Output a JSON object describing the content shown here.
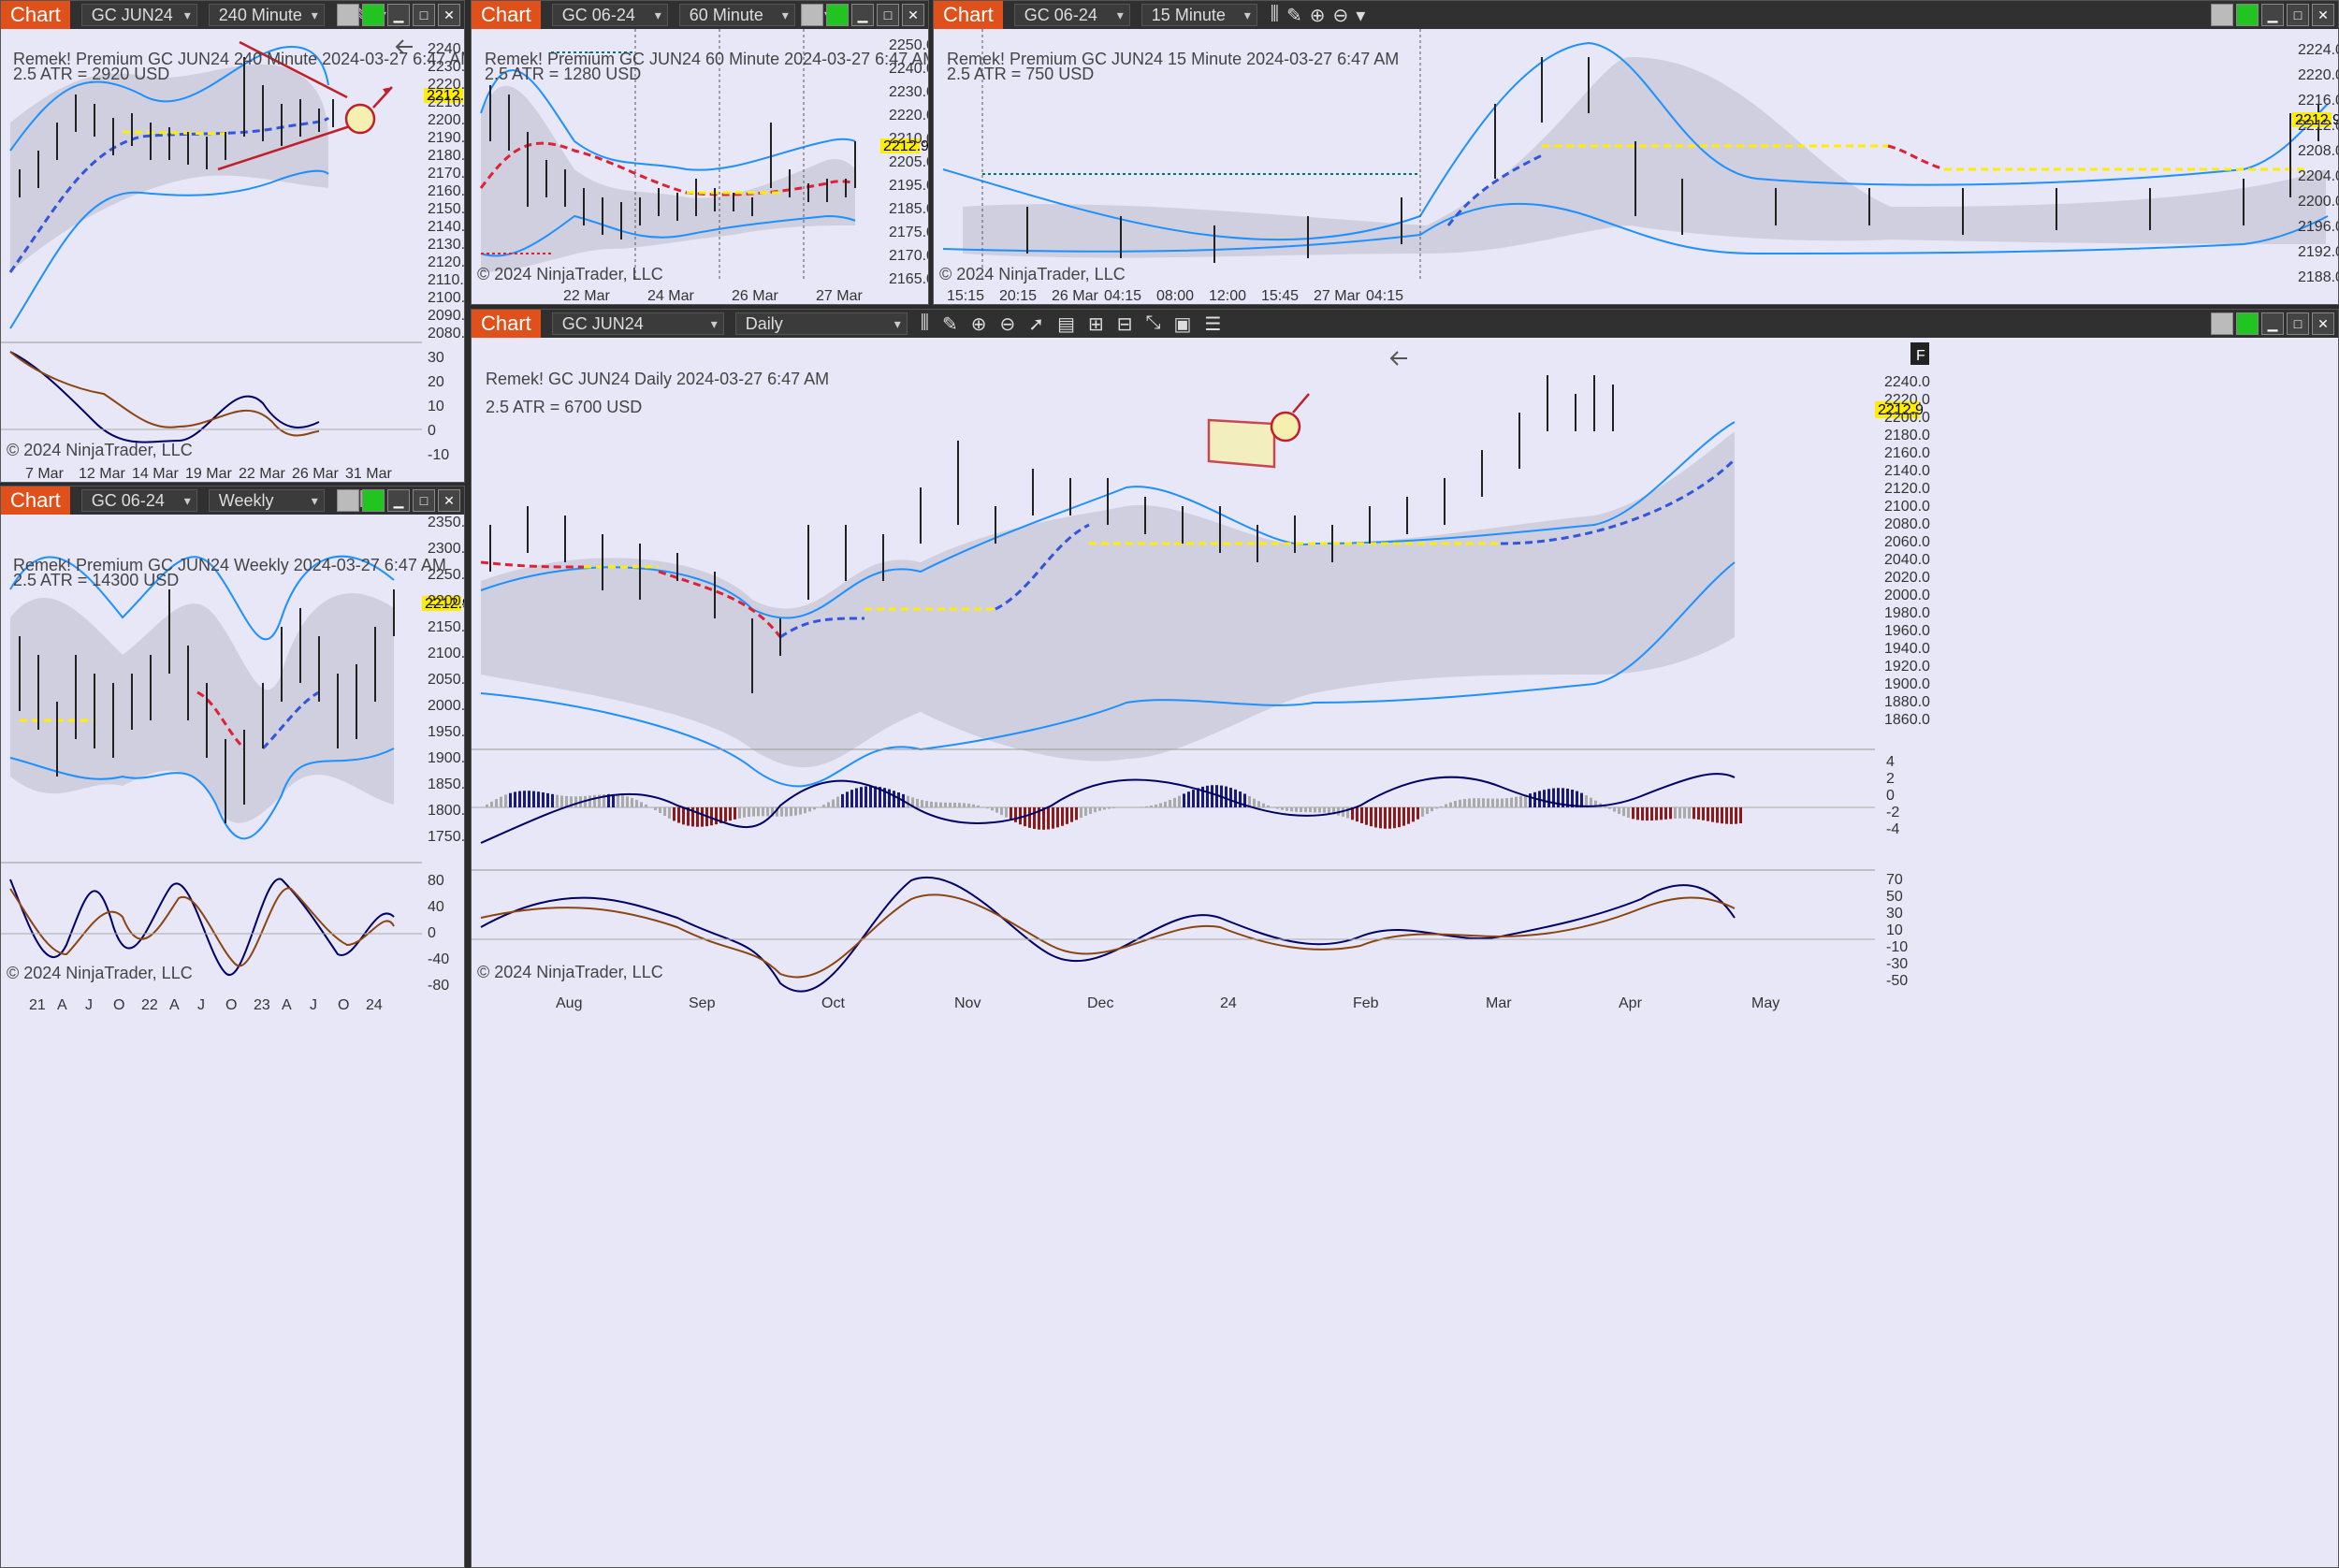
{
  "common": {
    "tab_label": "Chart",
    "price_now": "2212.9",
    "copyright": "© 2024 NinjaTrader, LLC"
  },
  "win_240": {
    "instrument": "GC JUN24",
    "interval": "240 Minute",
    "title": "Remek!  Premium  GC JUN24  240 Minute  2024-03-27 6:47 AM",
    "atr": "2.5 ATR = 2920 USD",
    "y_ticks": [
      "2240.0",
      "2230.0",
      "2220.0",
      "2210.0",
      "2200.0",
      "2190.0",
      "2180.0",
      "2170.0",
      "2160.0",
      "2150.0",
      "2140.0",
      "2130.0",
      "2120.0",
      "2110.0",
      "2100.0",
      "2090.0",
      "2080.0"
    ],
    "osc_ticks": [
      "30",
      "20",
      "10",
      "0",
      "-10"
    ],
    "x_ticks": [
      "7 Mar",
      "12 Mar",
      "14 Mar",
      "19 Mar",
      "22 Mar",
      "26 Mar",
      "31 Mar"
    ]
  },
  "win_60": {
    "instrument": "GC 06-24",
    "interval": "60 Minute",
    "title": "Remek!  Premium  GC JUN24  60 Minute  2024-03-27 6:47 AM",
    "atr": "2.5 ATR = 1280 USD",
    "y_ticks": [
      "2250.0",
      "2240.0",
      "2230.0",
      "2220.0",
      "2210.0",
      "2205.0",
      "2195.0",
      "2185.0",
      "2175.0",
      "2170.0",
      "2165.0"
    ],
    "x_ticks": [
      "22 Mar",
      "24 Mar",
      "26 Mar",
      "27 Mar"
    ]
  },
  "win_15": {
    "instrument": "GC 06-24",
    "interval": "15 Minute",
    "title": "Remek!  Premium  GC JUN24  15 Minute  2024-03-27 6:47 AM",
    "atr": "2.5 ATR = 750 USD",
    "y_ticks": [
      "2224.0",
      "2220.0",
      "2216.0",
      "2212.0",
      "2208.0",
      "2204.0",
      "2200.0",
      "2196.0",
      "2192.0",
      "2188.0"
    ],
    "x_ticks": [
      "15:15",
      "20:15",
      "26 Mar",
      "04:15",
      "08:00",
      "12:00",
      "15:45",
      "27 Mar",
      "04:15"
    ]
  },
  "win_weekly": {
    "instrument": "GC 06-24",
    "interval": "Weekly",
    "title": "Remek!  Premium  GC JUN24  Weekly  2024-03-27 6:47 AM",
    "atr": "2.5 ATR = 14300 USD",
    "y_ticks": [
      "2350.0",
      "2300.0",
      "2250.0",
      "2200.0",
      "2150.0",
      "2100.0",
      "2050.0",
      "2000.0",
      "1950.0",
      "1900.0",
      "1850.0",
      "1800.0",
      "1750.0"
    ],
    "osc_ticks": [
      "80",
      "40",
      "0",
      "-40",
      "-80"
    ],
    "x_ticks": [
      "21",
      "A",
      "J",
      "O",
      "22",
      "A",
      "J",
      "O",
      "23",
      "A",
      "J",
      "O",
      "24"
    ]
  },
  "win_daily": {
    "instrument": "GC JUN24",
    "interval": "Daily",
    "title": "Remek!  GC JUN24  Daily  2024-03-27 6:47 AM",
    "atr": "2.5 ATR = 6700 USD",
    "f_button": "F",
    "y_ticks": [
      "2240.0",
      "2220.0",
      "2200.0",
      "2180.0",
      "2160.0",
      "2140.0",
      "2120.0",
      "2100.0",
      "2080.0",
      "2060.0",
      "2040.0",
      "2020.0",
      "2000.0",
      "1980.0",
      "1960.0",
      "1940.0",
      "1920.0",
      "1900.0",
      "1880.0",
      "1860.0"
    ],
    "hist_ticks": [
      "4",
      "2",
      "0",
      "-2",
      "-4"
    ],
    "osc_ticks": [
      "70",
      "50",
      "30",
      "10",
      "-10",
      "-30",
      "-50"
    ],
    "x_ticks": [
      "Aug",
      "Sep",
      "Oct",
      "Nov",
      "Dec",
      "24",
      "Feb",
      "Mar",
      "Apr",
      "May"
    ]
  },
  "colors": {
    "upper_band": "#1e90ff",
    "mid_dash_up": "#4466dd",
    "mid_dash_down": "#dd2233",
    "neutral_dash": "#ffee00",
    "annotation": "#c0202a",
    "candle_up": "#2a6b3a",
    "candle_down": "#7a1a1a"
  }
}
